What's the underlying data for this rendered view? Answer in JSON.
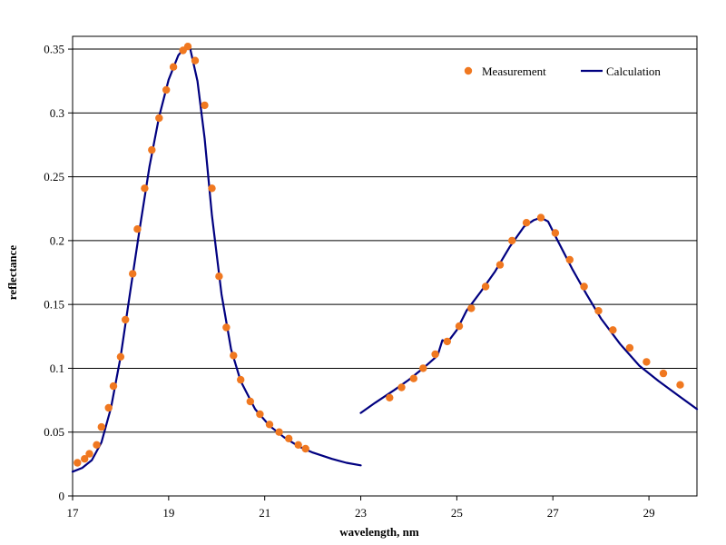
{
  "chart_data": {
    "type": "scatter",
    "title": "",
    "xlabel": "wavelength, nm",
    "ylabel": "reflectance",
    "xlim": [
      17,
      30
    ],
    "ylim": [
      0,
      0.36
    ],
    "x_ticks": [
      "17",
      "19",
      "21",
      "23",
      "25",
      "27",
      "29"
    ],
    "x_tick_values": [
      17,
      19,
      21,
      23,
      25,
      27,
      29
    ],
    "y_ticks": [
      "0",
      "0.05",
      "0.1",
      "0.15",
      "0.2",
      "0.25",
      "0.3",
      "0.35"
    ],
    "y_tick_values": [
      0,
      0.05,
      0.1,
      0.15,
      0.2,
      0.25,
      0.3,
      0.35
    ],
    "grid": "horizontal",
    "legend_position": "top-right",
    "colors": {
      "measurement": "#F07820",
      "calculation": "#000080"
    },
    "series": [
      {
        "name": "Measurement",
        "kind": "points",
        "x": [
          17.1,
          17.25,
          17.35,
          17.5,
          17.6,
          17.75,
          17.85,
          18.0,
          18.1,
          18.25,
          18.35,
          18.5,
          18.65,
          18.8,
          18.95,
          19.1,
          19.3,
          19.4,
          19.55,
          19.75,
          19.9,
          20.05,
          20.2,
          20.35,
          20.5,
          20.7,
          20.9,
          21.1,
          21.3,
          21.5,
          21.7,
          21.85,
          23.6,
          23.85,
          24.1,
          24.3,
          24.55,
          24.8,
          25.05,
          25.3,
          25.6,
          25.9,
          26.15,
          26.45,
          26.75,
          27.05,
          27.35,
          27.65,
          27.95,
          28.25,
          28.6,
          28.95,
          29.3,
          29.65
        ],
        "y": [
          0.026,
          0.029,
          0.033,
          0.04,
          0.054,
          0.069,
          0.086,
          0.109,
          0.138,
          0.174,
          0.209,
          0.241,
          0.271,
          0.296,
          0.318,
          0.336,
          0.349,
          0.352,
          0.341,
          0.306,
          0.241,
          0.172,
          0.132,
          0.11,
          0.091,
          0.074,
          0.064,
          0.056,
          0.05,
          0.045,
          0.04,
          0.037,
          0.077,
          0.085,
          0.092,
          0.1,
          0.111,
          0.121,
          0.133,
          0.147,
          0.164,
          0.181,
          0.2,
          0.214,
          0.218,
          0.206,
          0.185,
          0.164,
          0.145,
          0.13,
          0.116,
          0.105,
          0.096,
          0.087
        ]
      },
      {
        "name": "Calculation",
        "kind": "line",
        "segments": [
          {
            "x": [
              17.0,
              17.2,
              17.4,
              17.6,
              17.8,
              18.0,
              18.2,
              18.4,
              18.6,
              18.8,
              19.0,
              19.2,
              19.35,
              19.45,
              19.6,
              19.75,
              19.9,
              20.1,
              20.3,
              20.5,
              20.8,
              21.1,
              21.4,
              21.7,
              22.0,
              22.4,
              22.7,
              23.0
            ],
            "y": [
              0.019,
              0.022,
              0.028,
              0.042,
              0.069,
              0.109,
              0.16,
              0.21,
              0.258,
              0.297,
              0.326,
              0.345,
              0.352,
              0.35,
              0.325,
              0.28,
              0.22,
              0.158,
              0.115,
              0.09,
              0.068,
              0.055,
              0.046,
              0.039,
              0.034,
              0.029,
              0.026,
              0.024
            ]
          },
          {
            "x": [
              23.0,
              23.3,
              23.7,
              24.0,
              24.3,
              24.6,
              24.7,
              24.8,
              25.0,
              25.2,
              25.5,
              25.8,
              26.1,
              26.4,
              26.6,
              26.75,
              26.9,
              27.1,
              27.4,
              27.7,
              28.0,
              28.4,
              28.8,
              29.2,
              29.6,
              30.0
            ],
            "y": [
              0.065,
              0.073,
              0.083,
              0.091,
              0.1,
              0.11,
              0.122,
              0.12,
              0.13,
              0.145,
              0.16,
              0.176,
              0.195,
              0.211,
              0.216,
              0.218,
              0.215,
              0.2,
              0.178,
              0.158,
              0.139,
              0.119,
              0.102,
              0.09,
              0.079,
              0.068
            ]
          }
        ]
      }
    ]
  }
}
